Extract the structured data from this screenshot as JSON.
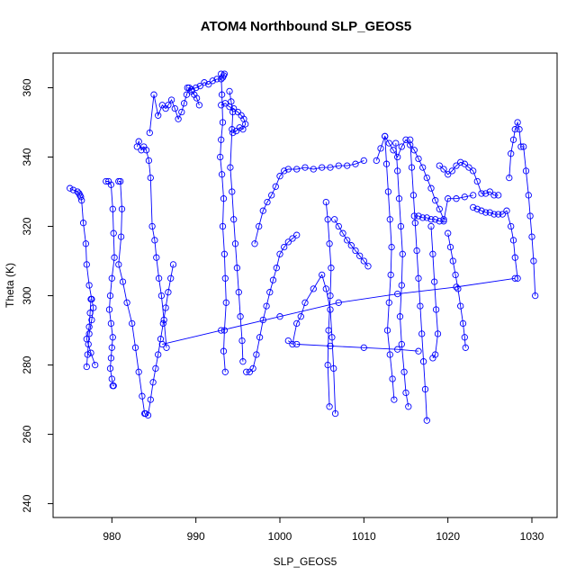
{
  "chart_data": {
    "type": "scatter",
    "title": "ATOM4 Northbound SLP_GEOS5",
    "xlabel": "SLP_GEOS5",
    "ylabel": "Theta (K)",
    "xlim": [
      973,
      1033
    ],
    "ylim": [
      236,
      370
    ],
    "x_ticks": [
      980,
      990,
      1000,
      1010,
      1020,
      1030
    ],
    "y_ticks": [
      240,
      260,
      280,
      300,
      320,
      340,
      360
    ],
    "grid": false,
    "legend": "none",
    "marker": "open-circle",
    "connected": true,
    "color": "#0000ff",
    "series": [
      {
        "x": [
          975.0,
          975.4,
          975.9,
          976.1,
          976.2,
          976.3,
          976.4,
          976.6,
          976.9,
          977.0,
          977.3,
          977.6,
          977.8,
          977.6,
          977.3,
          977.2,
          977.1,
          977.0
        ],
        "y": [
          331.0,
          330.5,
          330.0,
          329.5,
          329.0,
          328.5,
          327.5,
          321.0,
          315.0,
          309.0,
          303.0,
          299.0,
          296.5,
          293.0,
          289.0,
          286.0,
          283.0,
          279.5
        ]
      },
      {
        "x": [
          977.5,
          977.4,
          977.3,
          977.0,
          977.5,
          978.0
        ],
        "y": [
          299.0,
          295.0,
          291.0,
          287.5,
          283.5,
          280.0
        ]
      },
      {
        "x": [
          979.3,
          979.6,
          979.9,
          980.1,
          980.2,
          980.3,
          980.0,
          979.8,
          979.7,
          979.9,
          980.1,
          980.0,
          979.9,
          979.8,
          980.0,
          980.2,
          980.1
        ],
        "y": [
          333.0,
          333.0,
          332.0,
          325.0,
          318.0,
          311.0,
          305.0,
          300.0,
          296.0,
          292.0,
          288.0,
          285.0,
          282.0,
          279.0,
          276.0,
          274.0,
          274.0
        ]
      },
      {
        "x": [
          980.8,
          981.0,
          981.2,
          981.1,
          980.8,
          981.3,
          981.8,
          982.4,
          982.8,
          983.2,
          983.6,
          983.9
        ],
        "y": [
          333.0,
          333.0,
          325.0,
          317.0,
          309.0,
          304.0,
          298.0,
          292.0,
          285.0,
          278.0,
          271.0,
          266.0
        ]
      },
      {
        "x": [
          983.0,
          983.2,
          983.5,
          983.8,
          984.1,
          984.4,
          984.6,
          984.8,
          985.1,
          985.3,
          985.6,
          985.9,
          986.2,
          986.5
        ],
        "y": [
          343.0,
          344.5,
          342.0,
          343.0,
          342.0,
          339.0,
          334.0,
          320.0,
          316.0,
          311.0,
          305.0,
          300.0,
          293.0,
          285.0
        ]
      },
      {
        "x": [
          984.0,
          984.3,
          984.6,
          984.9,
          985.2,
          985.5,
          985.8,
          986.1,
          986.4,
          986.7,
          987.0,
          987.3
        ],
        "y": [
          266.0,
          265.5,
          270.0,
          275.0,
          279.0,
          283.0,
          287.5,
          292.0,
          296.5,
          301.0,
          305.0,
          309.0
        ]
      },
      {
        "x": [
          984.5,
          985.0,
          985.5,
          986.0,
          986.4,
          986.7,
          987.1,
          987.5,
          987.9,
          988.3,
          988.6,
          988.9,
          989.2,
          989.5,
          989.8,
          990.1,
          990.4
        ],
        "y": [
          347.0,
          358.0,
          352.0,
          355.0,
          354.0,
          355.0,
          356.5,
          354.0,
          351.0,
          353.0,
          355.5,
          358.0,
          360.0,
          359.0,
          358.0,
          357.0,
          355.0
        ]
      },
      {
        "x": [
          989.0,
          989.5,
          990.0,
          990.5,
          991.0,
          991.5,
          992.0,
          992.5,
          993.0,
          993.2,
          993.3,
          993.4
        ],
        "y": [
          360.0,
          359.5,
          360.0,
          360.5,
          361.5,
          361.0,
          362.0,
          362.5,
          362.5,
          363.0,
          363.5,
          364.0
        ]
      },
      {
        "x": [
          993.0,
          993.1,
          993.2,
          993.0,
          992.9,
          993.1,
          993.3,
          993.2,
          993.4,
          993.5,
          993.6,
          993.4,
          993.3,
          993.5
        ],
        "y": [
          364.0,
          358.0,
          350.0,
          345.0,
          340.0,
          335.0,
          328.0,
          320.0,
          312.0,
          305.0,
          298.0,
          290.0,
          284.0,
          278.0
        ]
      },
      {
        "x": [
          993.0,
          993.5,
          994.0,
          994.5,
          995.0,
          995.4,
          995.7,
          995.9,
          995.6,
          995.2,
          994.8,
          994.4
        ],
        "y": [
          355.0,
          355.5,
          354.5,
          354.0,
          353.0,
          352.0,
          351.0,
          349.5,
          348.0,
          348.5,
          347.5,
          347.0
        ]
      },
      {
        "x": [
          994.0,
          994.2,
          994.4,
          994.3,
          994.1,
          994.3,
          994.5,
          994.7,
          994.9,
          995.1,
          995.3,
          995.5,
          995.6
        ],
        "y": [
          359.0,
          356.0,
          353.0,
          348.0,
          337.0,
          330.0,
          322.0,
          315.0,
          308.0,
          301.0,
          294.0,
          287.0,
          281.0
        ]
      },
      {
        "x": [
          996.0,
          996.4,
          996.8,
          997.2,
          997.6,
          998.0,
          998.4,
          998.8,
          999.2,
          999.6,
          1000.0,
          1000.5,
          1001.0,
          1001.5,
          1002.0
        ],
        "y": [
          278.0,
          278.0,
          279.0,
          283.0,
          288.0,
          293.0,
          297.0,
          301.0,
          304.5,
          308.0,
          312.0,
          314.0,
          315.5,
          316.5,
          317.5
        ]
      },
      {
        "x": [
          997.0,
          997.5,
          998.0,
          998.5,
          999.0,
          999.5,
          1000.0,
          1000.5,
          1001.0,
          1002.0,
          1003.0,
          1004.0,
          1005.0,
          1006.0,
          1007.0,
          1008.0,
          1009.0,
          1010.0
        ],
        "y": [
          315.0,
          320.0,
          324.5,
          327.0,
          329.0,
          331.5,
          334.5,
          336.0,
          336.5,
          336.5,
          337.0,
          336.5,
          337.0,
          337.0,
          337.5,
          337.5,
          338.0,
          339.0
        ]
      },
      {
        "x": [
          1001.0,
          1001.5,
          1002.0,
          1002.5,
          1003.0,
          1004.0,
          1005.0,
          1005.5,
          1006.0,
          1006.2,
          1006.4,
          1006.6
        ],
        "y": [
          287.0,
          286.0,
          292.0,
          294.0,
          298.0,
          302.0,
          306.0,
          302.0,
          296.0,
          288.0,
          279.0,
          266.0
        ]
      },
      {
        "x": [
          1005.5,
          1005.7,
          1005.9,
          1006.1,
          1006.0,
          1005.8,
          1005.7,
          1005.9
        ],
        "y": [
          327.0,
          322.0,
          315.0,
          308.0,
          300.0,
          290.0,
          280.0,
          268.0
        ]
      },
      {
        "x": [
          1006.5,
          1007.0,
          1007.5,
          1008.0,
          1008.5,
          1009.0,
          1009.5,
          1010.0,
          1010.5
        ],
        "y": [
          322.0,
          320.0,
          318.0,
          316.0,
          314.5,
          313.0,
          311.5,
          310.0,
          308.5
        ]
      },
      {
        "x": [
          1011.5,
          1012.0,
          1012.5,
          1013.0,
          1013.5,
          1014.0,
          1014.5,
          1015.0,
          1015.5,
          1016.0,
          1016.5,
          1017.0,
          1017.5,
          1018.0,
          1018.5,
          1019.0,
          1019.5
        ],
        "y": [
          339.0,
          342.5,
          346.0,
          344.0,
          342.0,
          340.0,
          343.0,
          345.0,
          343.5,
          342.0,
          339.5,
          337.0,
          334.0,
          331.0,
          327.5,
          325.0,
          322.0
        ]
      },
      {
        "x": [
          1012.5,
          1012.7,
          1012.9,
          1013.1,
          1013.3,
          1013.2,
          1013.0,
          1012.8,
          1013.1,
          1013.4,
          1013.6
        ],
        "y": [
          346.0,
          338.0,
          330.0,
          322.0,
          314.0,
          306.0,
          298.0,
          290.0,
          283.0,
          276.0,
          270.0
        ]
      },
      {
        "x": [
          1013.8,
          1014.0,
          1014.2,
          1014.4,
          1014.6,
          1014.5,
          1014.3,
          1014.5,
          1014.8,
          1015.0,
          1015.3
        ],
        "y": [
          344.0,
          336.0,
          328.0,
          320.0,
          312.0,
          303.0,
          294.0,
          286.0,
          278.0,
          272.0,
          268.0
        ]
      },
      {
        "x": [
          1015.5,
          1015.7,
          1015.9,
          1016.1,
          1016.3,
          1016.5,
          1016.7,
          1016.9,
          1017.1,
          1017.3,
          1017.5
        ],
        "y": [
          345.0,
          337.0,
          329.0,
          321.0,
          313.0,
          305.0,
          297.0,
          289.0,
          281.0,
          273.0,
          264.0
        ]
      },
      {
        "x": [
          1016.0,
          1016.5,
          1017.0,
          1017.5,
          1018.0,
          1018.5,
          1019.0,
          1019.5,
          1020.0,
          1021.0,
          1022.0,
          1023.0
        ],
        "y": [
          323.0,
          323.0,
          322.5,
          322.5,
          322.0,
          322.0,
          321.5,
          321.5,
          328.0,
          328.0,
          328.5,
          329.0
        ]
      },
      {
        "x": [
          1018.0,
          1018.2,
          1018.4,
          1018.6,
          1018.8,
          1018.5,
          1018.2
        ],
        "y": [
          320.0,
          312.0,
          304.0,
          296.0,
          289.0,
          283.0,
          282.0
        ]
      },
      {
        "x": [
          1019.0,
          1019.5,
          1020.0,
          1020.5,
          1021.0,
          1021.5,
          1022.0,
          1022.5,
          1023.0,
          1023.5,
          1024.0,
          1024.5,
          1025.0,
          1025.5,
          1026.0
        ],
        "y": [
          337.5,
          336.5,
          335.0,
          336.0,
          337.5,
          338.5,
          338.0,
          337.0,
          336.0,
          333.0,
          329.5,
          329.5,
          330.0,
          329.0,
          329.0
        ]
      },
      {
        "x": [
          1020.0,
          1020.3,
          1020.6,
          1020.9,
          1021.2,
          1021.5,
          1021.8,
          1022.0,
          1022.1
        ],
        "y": [
          318.0,
          314.0,
          310.0,
          306.0,
          302.0,
          297.0,
          292.0,
          288.0,
          285.0
        ]
      },
      {
        "x": [
          1023.0,
          1023.5,
          1024.0,
          1024.5,
          1025.0,
          1025.5,
          1026.0,
          1026.5,
          1027.0,
          1027.5,
          1027.8,
          1028.0,
          1028.3
        ],
        "y": [
          325.5,
          325.0,
          324.5,
          324.0,
          324.0,
          323.5,
          323.5,
          323.5,
          324.5,
          320.0,
          316.0,
          311.0,
          305.0
        ]
      },
      {
        "x": [
          1027.3,
          1027.5,
          1027.8,
          1028.0,
          1028.3,
          1028.5,
          1028.7,
          1029.0,
          1029.3,
          1029.6,
          1029.8,
          1030.0,
          1030.2,
          1030.4
        ],
        "y": [
          334.0,
          341.0,
          345.0,
          348.0,
          350.0,
          348.0,
          343.0,
          343.0,
          336.0,
          329.0,
          323.0,
          317.0,
          310.0,
          300.0
        ]
      },
      {
        "x": [
          986.0,
          993.0,
          1000.0,
          1007.0,
          1014.0,
          1021.0,
          1028.0
        ],
        "y": [
          286.0,
          290.0,
          294.0,
          298.0,
          300.5,
          302.5,
          305.0
        ]
      },
      {
        "x": [
          1002.0,
          1006.0,
          1010.0,
          1014.0,
          1016.5
        ],
        "y": [
          286.0,
          285.5,
          285.0,
          284.5,
          284.0
        ]
      }
    ]
  }
}
